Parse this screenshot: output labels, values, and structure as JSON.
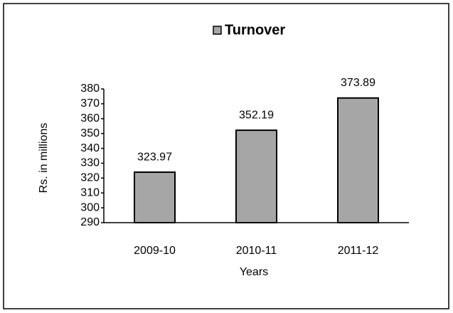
{
  "chart_data": {
    "type": "bar",
    "categories": [
      "2009-10",
      "2010-11",
      "2011-12"
    ],
    "series": [
      {
        "name": "Turnover",
        "color": "#a6a6a6",
        "values": [
          323.97,
          352.19,
          373.89
        ]
      }
    ],
    "ylim": [
      290,
      380
    ],
    "yticks": [
      290,
      300,
      310,
      320,
      330,
      340,
      350,
      360,
      370,
      380
    ],
    "y_label": "Rs. in millions",
    "x_label": "Years",
    "legend": "top"
  }
}
